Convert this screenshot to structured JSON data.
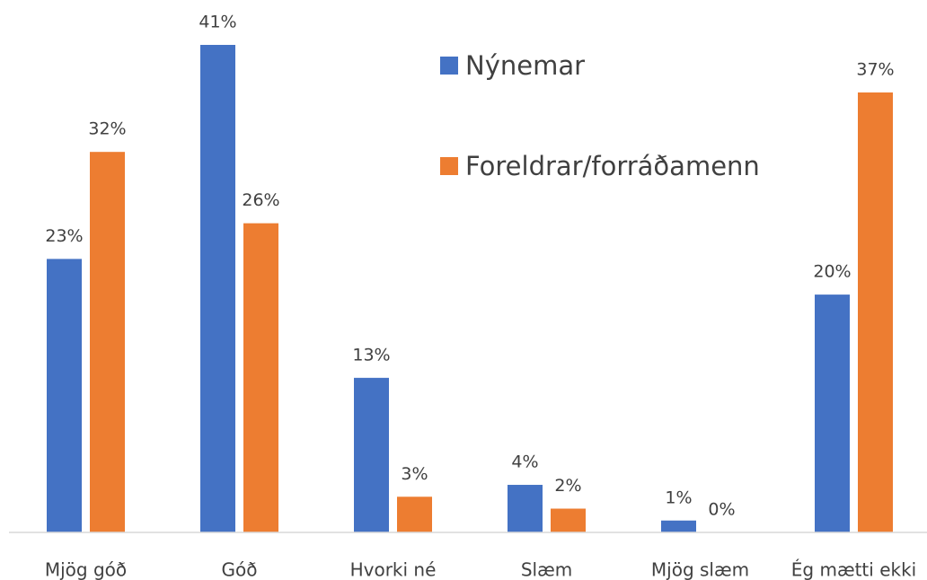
{
  "chart_data": {
    "type": "bar",
    "categories": [
      "Mjög góð",
      "Góð",
      "Hvorki né",
      "Slæm",
      "Mjög slæm",
      "Ég mætti ekki"
    ],
    "series": [
      {
        "name": "Nýnemar",
        "color": "#4472c4",
        "values": [
          23,
          41,
          13,
          4,
          1,
          20
        ],
        "value_labels": [
          "23%",
          "41%",
          "13%",
          "4%",
          "1%",
          "20%"
        ]
      },
      {
        "name": "Foreldrar/forráðamenn",
        "color": "#ed7d31",
        "values": [
          32,
          26,
          3,
          2,
          0,
          37
        ],
        "value_labels": [
          "32%",
          "26%",
          "3%",
          "2%",
          "0%",
          "37%"
        ]
      }
    ]
  }
}
